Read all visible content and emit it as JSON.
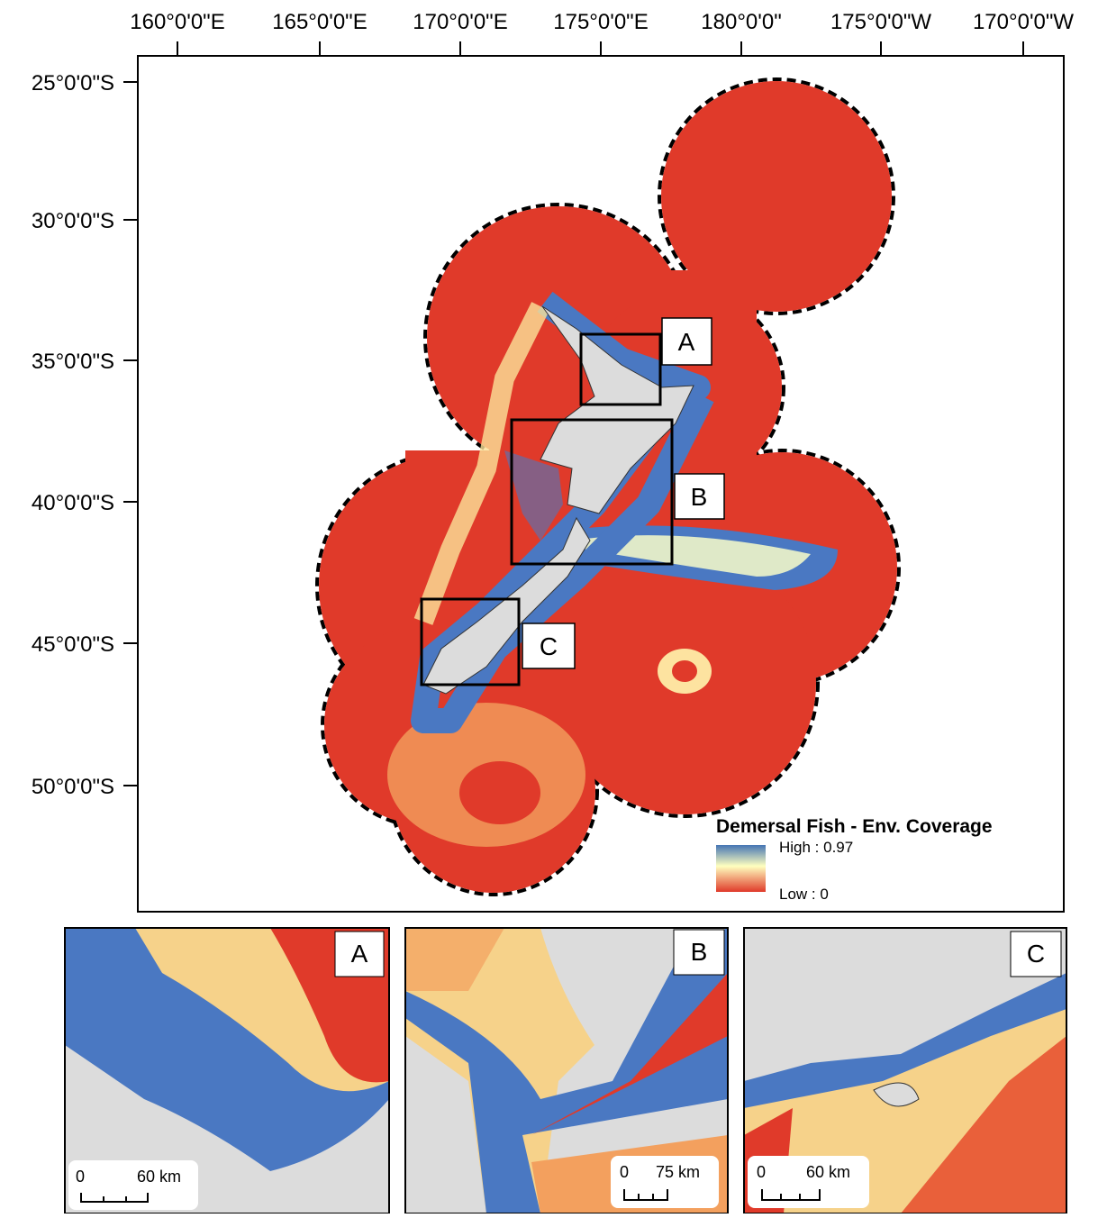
{
  "map": {
    "lon_labels": [
      "160°0'0\"E",
      "165°0'0\"E",
      "170°0'0\"E",
      "175°0'0\"E",
      "180°0'0\"",
      "175°0'0\"W",
      "170°0'0\"W"
    ],
    "lat_labels": [
      "25°0'0\"S",
      "30°0'0\"S",
      "35°0'0\"S",
      "40°0'0\"S",
      "45°0'0\"S",
      "50°0'0\"S"
    ],
    "boxes": [
      "A",
      "B",
      "C"
    ],
    "legend": {
      "title": "Demersal Fish - Env. Coverage",
      "high": "High : 0.97",
      "low": "Low : 0"
    }
  },
  "insets": [
    {
      "label": "A",
      "scale_start": "0",
      "scale_end": "60 km"
    },
    {
      "label": "B",
      "scale_start": "0",
      "scale_end": "75 km"
    },
    {
      "label": "C",
      "scale_start": "0",
      "scale_end": "60 km"
    }
  ]
}
